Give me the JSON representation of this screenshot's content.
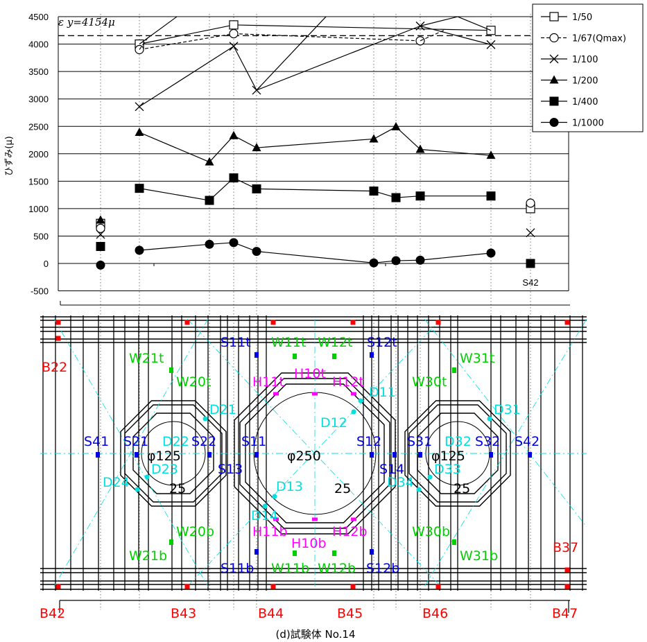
{
  "caption": "(d)試験体 No.14",
  "chart_data": {
    "type": "line",
    "ylabel": "ひずみ(μ)",
    "ylim": [
      -500,
      4500
    ],
    "yticks": [
      -500,
      0,
      500,
      1000,
      1500,
      2000,
      2500,
      3000,
      3500,
      4000,
      4500
    ],
    "grid": true,
    "legend_position": "top-right",
    "reference_line": {
      "value": 4154,
      "label": "ε y=4154μ"
    },
    "x_positions": [
      145,
      201,
      302,
      337,
      370,
      539,
      571,
      606,
      708,
      765
    ],
    "series": [
      {
        "name": "1/50",
        "marker": "square-open",
        "line": "solid",
        "points": [
          [
            145,
            730
          ],
          [
            201,
            4000
          ],
          [
            337,
            4350
          ],
          [
            708,
            4250
          ],
          [
            765,
            1000
          ]
        ],
        "segments": [
          [
            1,
            4500
          ]
        ],
        "y_off_top": [
          4500
        ]
      },
      {
        "name": "1/67(Qmax)",
        "marker": "circle-open",
        "line": "dashed",
        "points": [
          [
            145,
            640
          ],
          [
            201,
            3900
          ],
          [
            337,
            4190
          ],
          [
            606,
            4060
          ],
          [
            765,
            1100
          ]
        ]
      },
      {
        "name": "1/100",
        "marker": "x",
        "line": "solid",
        "points": [
          [
            145,
            530
          ],
          [
            201,
            2860
          ],
          [
            337,
            3960
          ],
          [
            370,
            3160
          ],
          [
            606,
            4330
          ],
          [
            708,
            3990
          ],
          [
            765,
            560
          ]
        ]
      },
      {
        "name": "1/200",
        "marker": "triangle-filled",
        "line": "solid",
        "points": [
          [
            145,
            790
          ],
          [
            201,
            2390
          ],
          [
            302,
            1850
          ],
          [
            337,
            2330
          ],
          [
            370,
            2110
          ],
          [
            539,
            2270
          ],
          [
            571,
            2490
          ],
          [
            606,
            2080
          ],
          [
            708,
            1970
          ]
        ]
      },
      {
        "name": "1/400",
        "marker": "square-filled",
        "line": "solid",
        "points": [
          [
            145,
            310
          ],
          [
            201,
            1370
          ],
          [
            302,
            1150
          ],
          [
            337,
            1560
          ],
          [
            370,
            1360
          ],
          [
            539,
            1320
          ],
          [
            571,
            1200
          ],
          [
            606,
            1230
          ],
          [
            708,
            1230
          ],
          [
            765,
            0
          ]
        ]
      },
      {
        "name": "1/1000",
        "marker": "circle-filled",
        "line": "solid",
        "points": [
          [
            145,
            -30
          ],
          [
            201,
            240
          ],
          [
            302,
            350
          ],
          [
            337,
            380
          ],
          [
            370,
            220
          ],
          [
            539,
            10
          ],
          [
            571,
            50
          ],
          [
            606,
            60
          ],
          [
            708,
            190
          ]
        ]
      }
    ],
    "annotations": [
      "S42"
    ]
  },
  "plan": {
    "labels_red": [
      "B22",
      "B37",
      "B42",
      "B43",
      "B44",
      "B45",
      "B46",
      "B47"
    ],
    "labels_blue": [
      "S11t",
      "S12t",
      "S41",
      "S21",
      "S22",
      "S11",
      "S13",
      "S12",
      "S14",
      "S31",
      "S32",
      "S42",
      "S11b",
      "S12b"
    ],
    "labels_green": [
      "W11t",
      "W12t",
      "W21t",
      "W31t",
      "W20t",
      "W30t",
      "W20b",
      "W30b",
      "W21b",
      "W31b",
      "W11b",
      "W12b"
    ],
    "labels_cyan": [
      "D11",
      "D12",
      "D21",
      "D22",
      "D23",
      "D24",
      "D13",
      "D14",
      "D31",
      "D32",
      "D33",
      "D34"
    ],
    "labels_magenta": [
      "H11t",
      "H10t",
      "H12t",
      "H11b",
      "H10b",
      "H12b"
    ],
    "labels_black": [
      "φ125",
      "φ250",
      "φ125",
      "25",
      "25",
      "25"
    ],
    "colors": {
      "red": "#ff0000",
      "blue": "#0000e0",
      "green": "#00d000",
      "cyan": "#00e0e0",
      "magenta": "#ff00ff",
      "black": "#000000"
    }
  }
}
